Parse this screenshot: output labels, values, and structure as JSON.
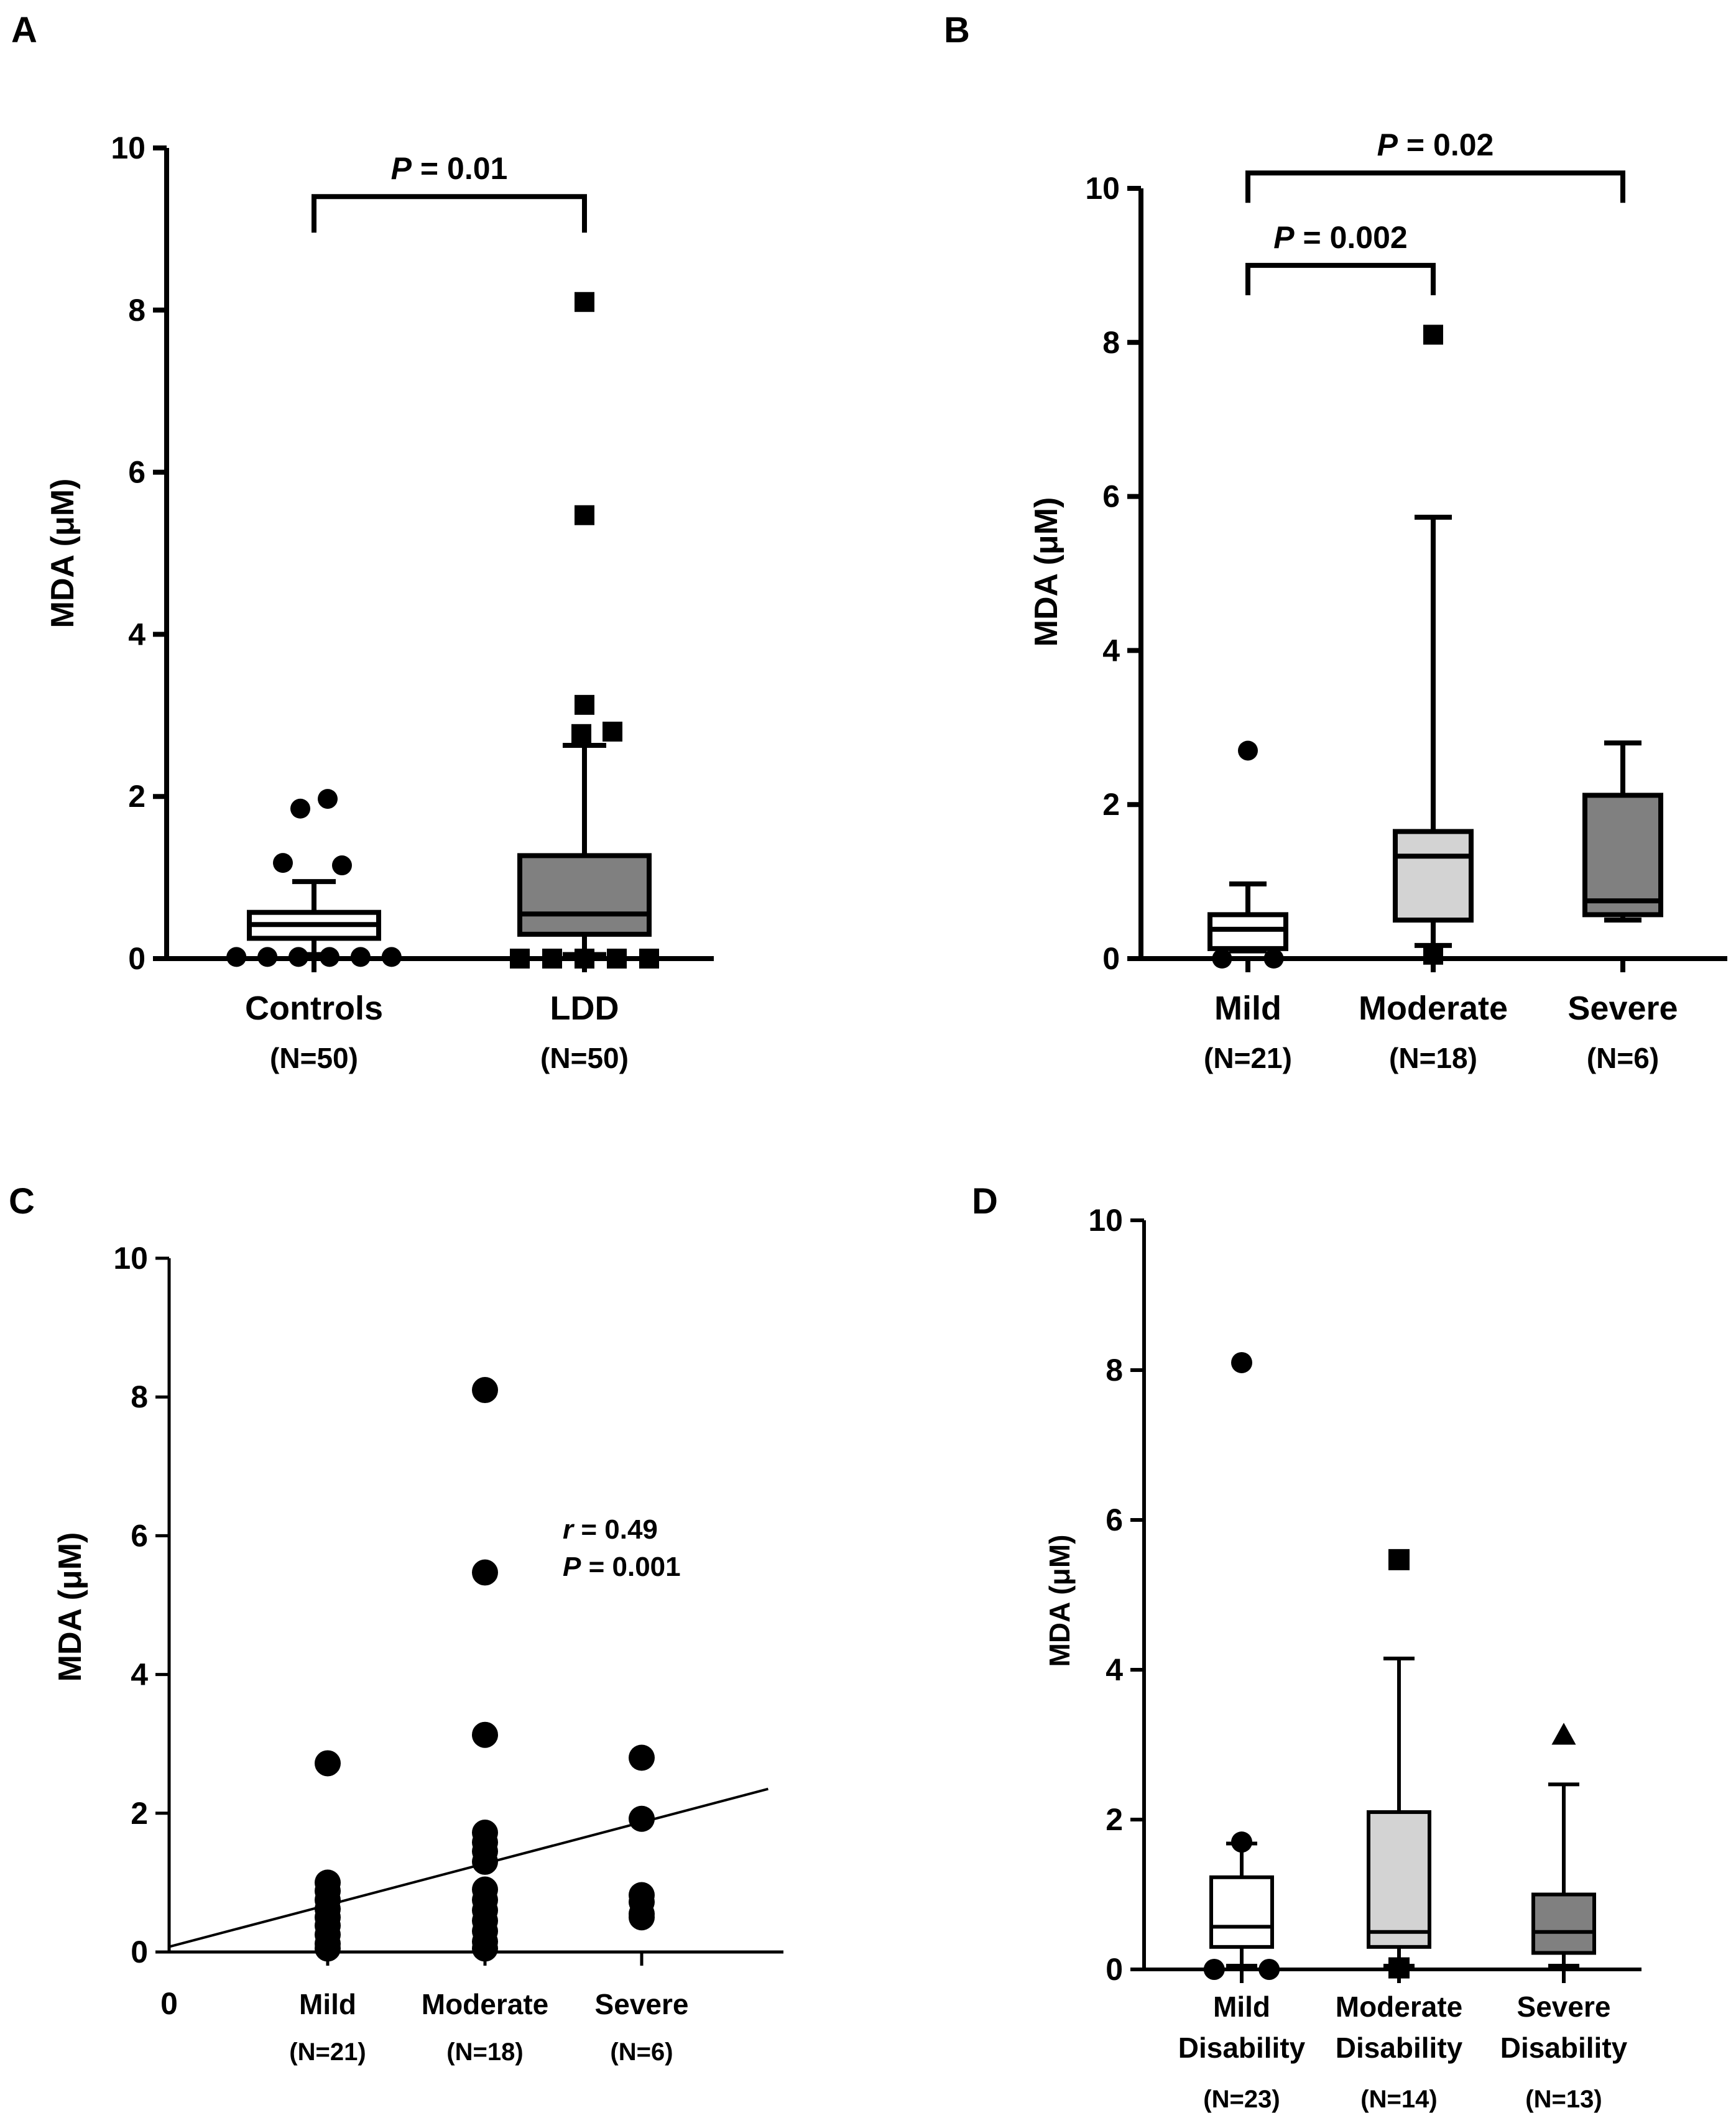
{
  "chart_data": [
    {
      "panel": "A",
      "type": "box",
      "ylabel": "MDA (μM)",
      "ylim": [
        0,
        10
      ],
      "yticks": [
        0,
        2,
        4,
        6,
        8,
        10
      ],
      "categories": [
        {
          "name": "Controls",
          "n": "(N=50)",
          "fill": "#ffffff",
          "min": 0.05,
          "q1": 0.25,
          "median": 0.42,
          "q3": 0.57,
          "max": 0.95,
          "outliers": [
            1.85,
            1.97,
            1.18,
            1.15,
            0.02,
            0.02,
            0.02,
            0.02,
            0.02,
            0.02
          ],
          "marker": "circle"
        },
        {
          "name": "LDD",
          "n": "(N=50)",
          "fill": "#808080",
          "min": 0.05,
          "q1": 0.3,
          "median": 0.55,
          "q3": 1.27,
          "max": 2.63,
          "outliers": [
            8.1,
            5.47,
            3.13,
            2.77,
            2.8,
            0.0,
            0.0,
            0.0,
            0.0,
            0.0
          ],
          "marker": "square"
        }
      ],
      "comparisons": [
        {
          "from": 0,
          "to": 1,
          "label": "P",
          "value": "= 0.01",
          "y": 9.4
        }
      ]
    },
    {
      "panel": "B",
      "type": "box",
      "ylabel": "MDA (μM)",
      "ylim": [
        0,
        10
      ],
      "yticks": [
        0,
        2,
        4,
        6,
        8,
        10
      ],
      "categories": [
        {
          "name": "Mild",
          "n": "(N=21)",
          "fill": "#ffffff",
          "min": 0.1,
          "q1": 0.13,
          "median": 0.38,
          "q3": 0.57,
          "max": 0.97,
          "outliers": [
            2.7,
            0.0,
            0.0
          ],
          "marker": "circle"
        },
        {
          "name": "Moderate",
          "n": "(N=18)",
          "fill": "#d3d3d3",
          "min": 0.17,
          "q1": 0.5,
          "median": 1.33,
          "q3": 1.65,
          "max": 5.73,
          "outliers": [
            8.1,
            0.05
          ],
          "marker": "square"
        },
        {
          "name": "Severe",
          "n": "(N=6)",
          "fill": "#808080",
          "min": 0.5,
          "q1": 0.57,
          "median": 0.75,
          "q3": 2.12,
          "max": 2.8,
          "outliers": [],
          "marker": "triangle"
        }
      ],
      "comparisons": [
        {
          "from": 0,
          "to": 1,
          "label": "P",
          "value": "= 0.002",
          "y": 9.0
        },
        {
          "from": 0,
          "to": 2,
          "label": "P",
          "value": "= 0.02",
          "y": 10.2
        }
      ]
    },
    {
      "panel": "C",
      "type": "scatter",
      "ylabel": "MDA (μM)",
      "ylim": [
        0,
        10
      ],
      "yticks": [
        0,
        2,
        4,
        6,
        8,
        10
      ],
      "xorigin_label": "0",
      "categories": [
        {
          "name": "Mild",
          "n": "(N=21)",
          "points": [
            2.72,
            1.0,
            0.88,
            0.75,
            0.62,
            0.5,
            0.38,
            0.25,
            0.12,
            0.05
          ]
        },
        {
          "name": "Moderate",
          "n": "(N=18)",
          "points": [
            8.1,
            5.47,
            3.13,
            1.72,
            1.58,
            1.45,
            1.3,
            0.9,
            0.75,
            0.6,
            0.45,
            0.3,
            0.15,
            0.05
          ]
        },
        {
          "name": "Severe",
          "n": "(N=6)",
          "points": [
            2.8,
            1.92,
            0.82,
            0.72,
            0.55,
            0.5
          ]
        }
      ],
      "regression": {
        "x0": 0,
        "y0": 0.08,
        "x1": 3.8,
        "y1": 2.35
      },
      "annotation": {
        "r_label": "r",
        "r_value": "= 0.49",
        "p_label": "P",
        "p_value": "= 0.001"
      }
    },
    {
      "panel": "D",
      "type": "box",
      "ylabel": "MDA (μM)",
      "ylim": [
        0,
        10
      ],
      "yticks": [
        0,
        2,
        4,
        6,
        8,
        10
      ],
      "categories": [
        {
          "name": "Mild",
          "name2": "Disability",
          "n": "(N=23)",
          "fill": "#ffffff",
          "min": 0.05,
          "q1": 0.3,
          "median": 0.57,
          "q3": 1.23,
          "max": 1.68,
          "outliers": [
            8.1,
            1.7,
            0.0,
            0.0
          ],
          "marker": "circle"
        },
        {
          "name": "Moderate",
          "name2": "Disability",
          "n": "(N=14)",
          "fill": "#d3d3d3",
          "min": 0.05,
          "q1": 0.3,
          "median": 0.5,
          "q3": 2.1,
          "max": 4.15,
          "outliers": [
            5.47,
            0.02
          ],
          "marker": "square"
        },
        {
          "name": "Severe",
          "name2": "Disability",
          "n": "(N=13)",
          "fill": "#808080",
          "min": 0.05,
          "q1": 0.22,
          "median": 0.5,
          "q3": 1.0,
          "max": 2.47,
          "outliers": [
            3.13
          ],
          "marker": "triangle"
        }
      ],
      "comparisons": []
    }
  ]
}
